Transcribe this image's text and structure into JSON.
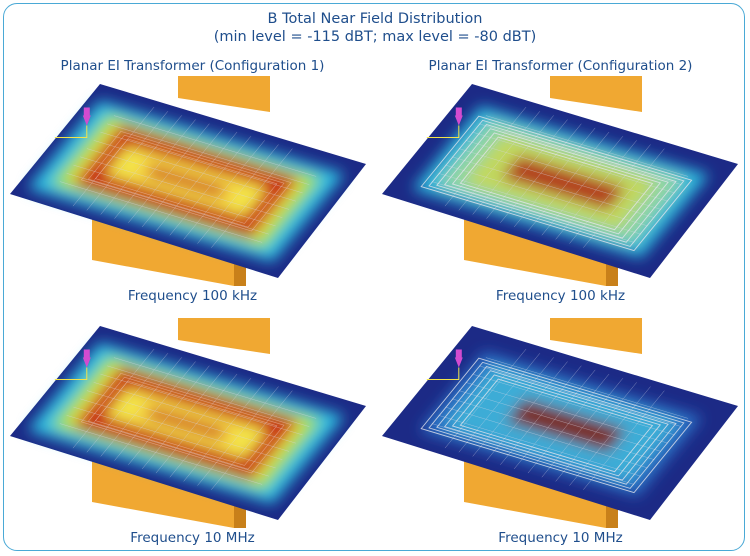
{
  "title": "B Total Near Field Distribution",
  "subtitle": "(min level = -115 dBT; max level = -80 dBT)",
  "columns": [
    {
      "header": "Planar EI Transformer (Configuration 1)"
    },
    {
      "header": "Planar EI Transformer (Configuration 2)"
    }
  ],
  "panels": [
    {
      "caption": "Frequency 100 kHz",
      "configuration": 1,
      "field_level": "high"
    },
    {
      "caption": "Frequency 100 kHz",
      "configuration": 2,
      "field_level": "medium"
    },
    {
      "caption": "Frequency 10 MHz",
      "configuration": 1,
      "field_level": "high"
    },
    {
      "caption": "Frequency 10 MHz",
      "configuration": 2,
      "field_level": "low"
    }
  ],
  "colors": {
    "frame": "#4aa9d6",
    "text": "#1f4e8c",
    "plane_low": "#1c2a86",
    "core": "#f0a832",
    "core_dark": "#c8801a",
    "field_red": "#c81e14",
    "field_yellow": "#f3e44a",
    "field_cyan": "#2fc7e6"
  }
}
